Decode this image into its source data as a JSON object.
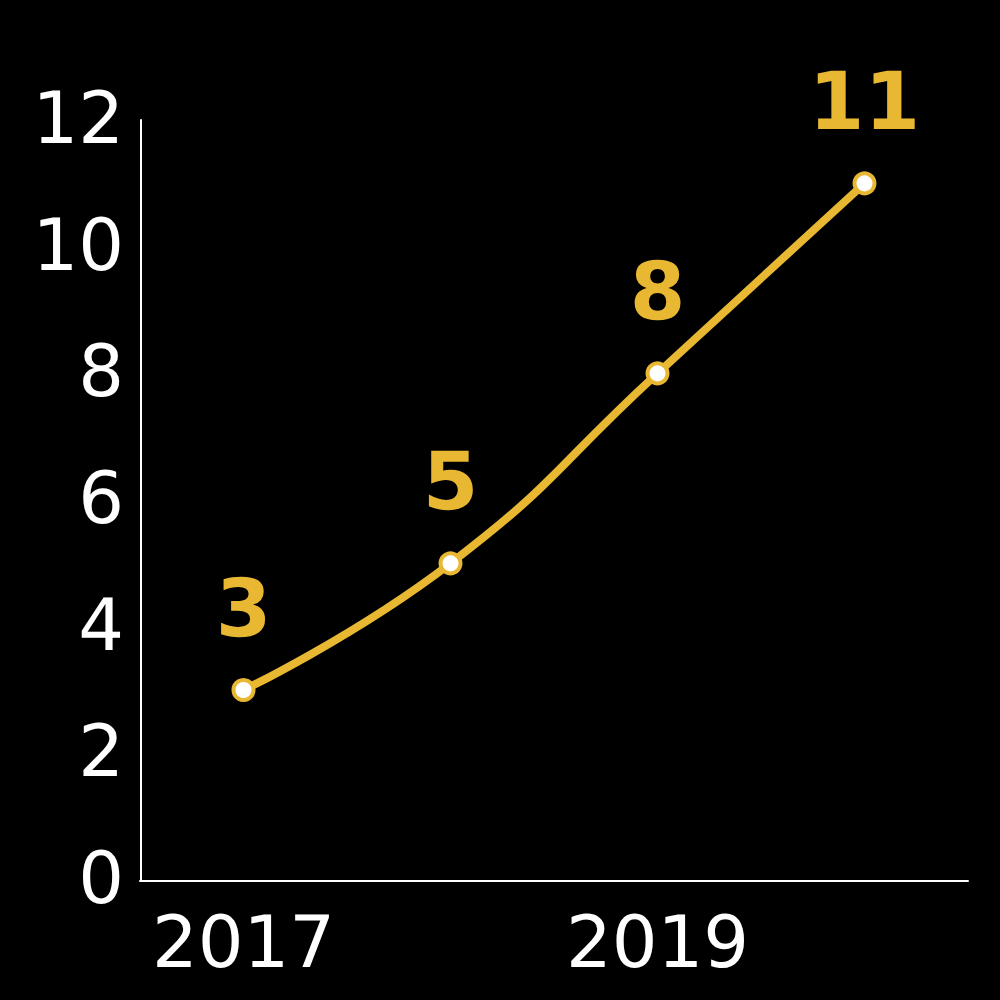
{
  "chart_data": {
    "type": "line",
    "categories": [
      "2017",
      null,
      "2019",
      null
    ],
    "series": [
      {
        "color": "#e9b832",
        "values": [
          3,
          5,
          8,
          11
        ]
      }
    ],
    "ylim": [
      0,
      12
    ],
    "yticks": [
      0,
      2,
      4,
      6,
      8,
      10,
      12
    ],
    "grid": false,
    "marker": "circle",
    "line_style": "solid",
    "data_labels": true
  }
}
